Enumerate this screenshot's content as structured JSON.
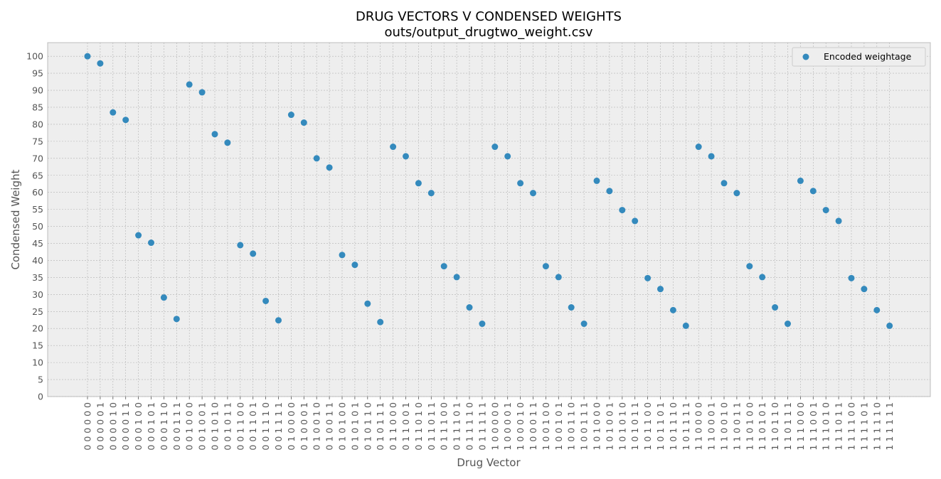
{
  "chart_data": {
    "type": "scatter",
    "title": "DRUG VECTORS V CONDENSED WEIGHTS",
    "subtitle": "outs/output_drugtwo_weight.csv",
    "xlabel": "Drug Vector",
    "ylabel": "Condensed Weight",
    "ylim": [
      0,
      104
    ],
    "yticks": [
      0,
      5,
      10,
      15,
      20,
      25,
      30,
      35,
      40,
      45,
      50,
      55,
      60,
      65,
      70,
      75,
      80,
      85,
      90,
      95,
      100
    ],
    "grid": true,
    "legend_position": "top-right",
    "colors": {
      "marker": "#348abd",
      "plot_bg": "#eeeeee",
      "grid": "#b2b2b2",
      "frame": "#bcbcbc"
    },
    "series": [
      {
        "name": "Encoded weightage",
        "x": [
          "0 0 0 0 0 0",
          "0 0 0 0 0 1",
          "0 0 0 0 1 0",
          "0 0 0 0 1 1",
          "0 0 0 1 0 0",
          "0 0 0 1 0 1",
          "0 0 0 1 1 0",
          "0 0 0 1 1 1",
          "0 0 1 0 0 0",
          "0 0 1 0 0 1",
          "0 0 1 0 1 0",
          "0 0 1 0 1 1",
          "0 0 1 1 0 0",
          "0 0 1 1 0 1",
          "0 0 1 1 1 0",
          "0 0 1 1 1 1",
          "0 1 0 0 0 0",
          "0 1 0 0 0 1",
          "0 1 0 0 1 0",
          "0 1 0 0 1 1",
          "0 1 0 1 0 0",
          "0 1 0 1 0 1",
          "0 1 0 1 1 0",
          "0 1 0 1 1 1",
          "0 1 1 0 0 0",
          "0 1 1 0 0 1",
          "0 1 1 0 1 0",
          "0 1 1 0 1 1",
          "0 1 1 1 0 0",
          "0 1 1 1 0 1",
          "0 1 1 1 1 0",
          "0 1 1 1 1 1",
          "1 0 0 0 0 0",
          "1 0 0 0 0 1",
          "1 0 0 0 1 0",
          "1 0 0 0 1 1",
          "1 0 0 1 0 0",
          "1 0 0 1 0 1",
          "1 0 0 1 1 0",
          "1 0 0 1 1 1",
          "1 0 1 0 0 0",
          "1 0 1 0 0 1",
          "1 0 1 0 1 0",
          "1 0 1 0 1 1",
          "1 0 1 1 0 0",
          "1 0 1 1 0 1",
          "1 0 1 1 1 0",
          "1 0 1 1 1 1",
          "1 1 0 0 0 0",
          "1 1 0 0 0 1",
          "1 1 0 0 1 0",
          "1 1 0 0 1 1",
          "1 1 0 1 0 0",
          "1 1 0 1 0 1",
          "1 1 0 1 1 0",
          "1 1 0 1 1 1",
          "1 1 1 0 0 0",
          "1 1 1 0 0 1",
          "1 1 1 0 1 0",
          "1 1 1 0 1 1",
          "1 1 1 1 0 0",
          "1 1 1 1 0 1",
          "1 1 1 1 1 0",
          "1 1 1 1 1 1"
        ],
        "y": [
          100,
          97.9,
          83.5,
          81.3,
          47.4,
          45.2,
          29.1,
          22.8,
          91.7,
          89.4,
          77.1,
          74.6,
          44.5,
          42.0,
          28.1,
          22.4,
          82.8,
          80.5,
          70.0,
          67.3,
          41.6,
          38.7,
          27.3,
          21.9,
          73.4,
          70.6,
          62.7,
          59.8,
          38.3,
          35.1,
          26.2,
          21.4,
          73.4,
          70.6,
          62.7,
          59.8,
          38.3,
          35.1,
          26.2,
          21.4,
          63.4,
          60.4,
          54.8,
          51.6,
          34.8,
          31.6,
          25.4,
          20.8,
          73.4,
          70.6,
          62.7,
          59.8,
          38.3,
          35.1,
          26.2,
          21.4,
          63.4,
          60.4,
          54.8,
          51.6,
          34.8,
          31.6,
          25.4,
          20.8
        ]
      }
    ]
  }
}
